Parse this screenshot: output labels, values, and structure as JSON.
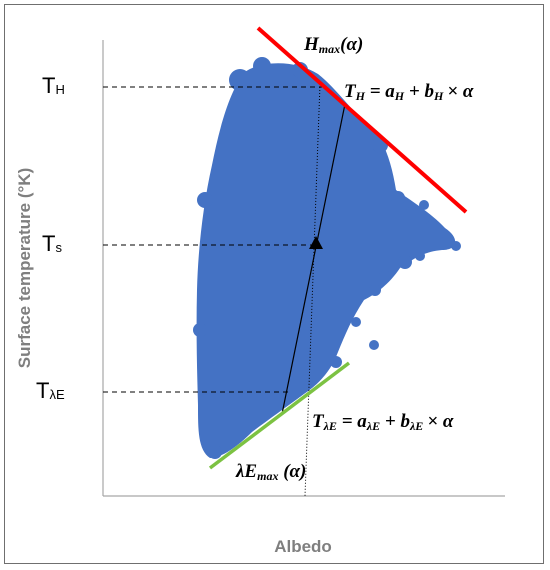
{
  "axes": {
    "xlabel": "Albedo",
    "ylabel": "Surface temperature (°K)"
  },
  "y_ticks": [
    {
      "id": "th",
      "main": "T",
      "sub": "H"
    },
    {
      "id": "ts",
      "main": "T",
      "sub": "s"
    },
    {
      "id": "tle",
      "main": "T",
      "sub": "λE"
    }
  ],
  "equations": {
    "hmax": {
      "name": "H",
      "sub": "max",
      "arg": "(α)"
    },
    "th": {
      "lhs": "T",
      "lhs_sub": "H",
      "eq": " = ",
      "a": "a",
      "a_sub": "H",
      "plus": " + ",
      "b": "b",
      "b_sub": "H",
      "tail": "× α"
    },
    "tle": {
      "lhs": "T",
      "lhs_sub": "λE",
      "eq": " = ",
      "a": "a",
      "a_sub": "λE",
      "plus": " + ",
      "b": "b",
      "b_sub": "λE",
      "tail": "× α"
    },
    "lemax": {
      "name": "λE",
      "sub": "max",
      "arg": " (α)"
    }
  },
  "colors": {
    "scatter": "#4472c4",
    "dry_edge": "#ff0000",
    "wet_edge": "#7cc242",
    "guide": "#000000",
    "axis": "#a6a6a6"
  }
}
